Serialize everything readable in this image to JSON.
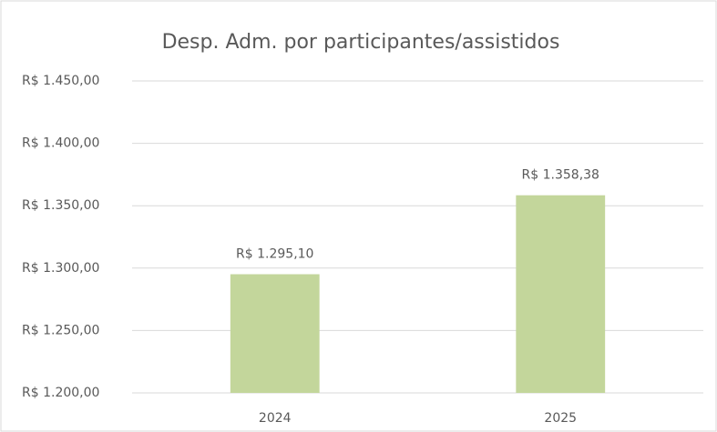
{
  "chart_data": {
    "type": "bar",
    "title": "Desp. Adm. por participantes/assistidos",
    "categories": [
      "2024",
      "2025"
    ],
    "values": [
      1295.1,
      1358.38
    ],
    "value_labels": [
      "R$ 1.295,10",
      "R$ 1.358,38"
    ],
    "color": "#c3d69b",
    "ylim": [
      1200,
      1450
    ],
    "yticks": [
      {
        "value": 1200,
        "label": "R$ 1.200,00"
      },
      {
        "value": 1250,
        "label": "R$ 1.250,00"
      },
      {
        "value": 1300,
        "label": "R$ 1.300,00"
      },
      {
        "value": 1350,
        "label": "R$ 1.350,00"
      },
      {
        "value": 1400,
        "label": "R$ 1.400,00"
      },
      {
        "value": 1450,
        "label": "R$ 1.450,00"
      }
    ],
    "grid": true
  }
}
